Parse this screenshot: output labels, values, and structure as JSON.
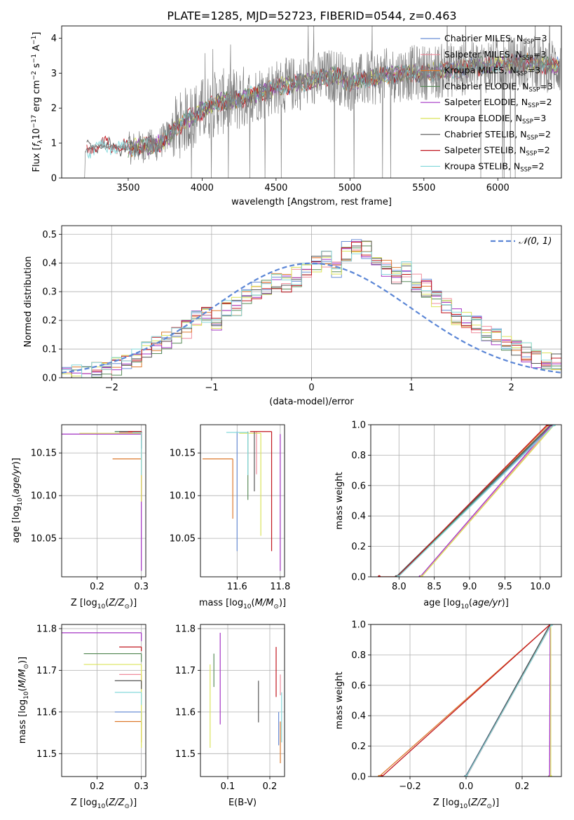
{
  "figure_title": "PLATE=1285, MJD=52723, FIBERID=0544, z=0.463",
  "model_colors": [
    "#6b8fd6",
    "#f08c9c",
    "#dd7a2e",
    "#5a8c5a",
    "#a332c4",
    "#dbe35a",
    "#555555",
    "#c0161f",
    "#86d9dc"
  ],
  "chart_data": [
    {
      "id": "spectrum",
      "type": "line",
      "title": "PLATE=1285, MJD=52723, FIBERID=0544, z=0.463",
      "xlabel": "wavelength [Angstrom, rest frame]",
      "ylabel": "Flux [f_λ 10^-17 erg cm^-2 s^-1 A^-1]",
      "xlim": [
        3050,
        6430
      ],
      "ylim": [
        0,
        4.35
      ],
      "xticks": [
        3500,
        4000,
        4500,
        5000,
        5500,
        6000
      ],
      "yticks": [
        0,
        1,
        2,
        3,
        4
      ],
      "grid": false,
      "legend_position": "top-right",
      "data_color": "#808080",
      "data_trend": {
        "x": [
          3210,
          3260,
          3350,
          3500,
          3700,
          3900,
          4100,
          4300,
          4500,
          4700,
          4800,
          4900,
          5000,
          5200,
          5400,
          5600,
          5800,
          6000,
          6200,
          6400
        ],
        "y": [
          0.75,
          0.9,
          0.92,
          0.85,
          0.95,
          1.7,
          2.15,
          2.3,
          2.6,
          2.75,
          2.85,
          2.95,
          2.7,
          2.9,
          3.0,
          3.05,
          3.15,
          3.25,
          3.3,
          3.2
        ]
      },
      "series": [
        {
          "name": "Chabrier MILES",
          "nssp": "3"
        },
        {
          "name": "Salpeter MILES",
          "nssp": "3"
        },
        {
          "name": "Kroupa MILES",
          "nssp": "3"
        },
        {
          "name": "Chabrier ELODIE",
          "nssp": "3"
        },
        {
          "name": "Salpeter ELODIE",
          "nssp": "2"
        },
        {
          "name": "Kroupa ELODIE",
          "nssp": "3"
        },
        {
          "name": "Chabrier STELIB",
          "nssp": "2"
        },
        {
          "name": "Salpeter STELIB",
          "nssp": "2"
        },
        {
          "name": "Kroupa STELIB",
          "nssp": "2"
        }
      ]
    },
    {
      "id": "residuals",
      "type": "line",
      "xlabel": "(data-model)/error",
      "ylabel": "Normed distribution",
      "xlim": [
        -2.5,
        2.5
      ],
      "ylim": [
        0,
        0.53
      ],
      "xticks": [
        -2,
        -1,
        0,
        1,
        2
      ],
      "yticks": [
        0.0,
        0.1,
        0.2,
        0.3,
        0.4,
        0.5
      ],
      "grid": true,
      "legend_position": "top-right",
      "reference_curve": {
        "name": "N(0,1)",
        "mean": 0,
        "sigma": 1
      },
      "bins": [
        -2.5,
        -2.4,
        -2.3,
        -2.2,
        -2.1,
        -2.0,
        -1.9,
        -1.8,
        -1.7,
        -1.6,
        -1.5,
        -1.4,
        -1.3,
        -1.2,
        -1.1,
        -1.0,
        -0.9,
        -0.8,
        -0.7,
        -0.6,
        -0.5,
        -0.4,
        -0.3,
        -0.2,
        -0.1,
        0.0,
        0.1,
        0.2,
        0.3,
        0.4,
        0.5,
        0.6,
        0.7,
        0.8,
        0.9,
        1.0,
        1.1,
        1.2,
        1.3,
        1.4,
        1.5,
        1.6,
        1.7,
        1.8,
        1.9,
        2.0,
        2.1,
        2.2,
        2.3,
        2.4,
        2.5
      ],
      "histogram_base": [
        0.01,
        0.01,
        0.015,
        0.02,
        0.03,
        0.04,
        0.06,
        0.07,
        0.09,
        0.11,
        0.13,
        0.15,
        0.17,
        0.2,
        0.22,
        0.2,
        0.24,
        0.25,
        0.28,
        0.3,
        0.32,
        0.34,
        0.33,
        0.35,
        0.37,
        0.4,
        0.41,
        0.38,
        0.44,
        0.46,
        0.45,
        0.4,
        0.38,
        0.35,
        0.37,
        0.33,
        0.31,
        0.27,
        0.25,
        0.22,
        0.2,
        0.19,
        0.16,
        0.14,
        0.12,
        0.1,
        0.09,
        0.07,
        0.06,
        0.05
      ]
    },
    {
      "id": "age_vs_Z",
      "type": "scatter",
      "xlabel": "Z [log10(Z/Z⊙)]",
      "ylabel": "age  [log10(age/yr)]",
      "xlim": [
        0.12,
        0.31
      ],
      "ylim": [
        10.005,
        10.183
      ],
      "xticks": [
        0.2,
        0.3
      ],
      "yticks": [
        10.05,
        10.1,
        10.15
      ],
      "grid": true,
      "points": [
        {
          "x": 0.3,
          "y": 10.175,
          "xerr": 0.06,
          "yerr": 0.02
        },
        {
          "x": 0.3,
          "y": 10.174,
          "xerr": 0.05,
          "yerr": 0.03
        },
        {
          "x": 0.3,
          "y": 10.143,
          "xerr": 0.065,
          "yerr": 0.05
        },
        {
          "x": 0.3,
          "y": 10.175,
          "xerr": 0.06,
          "yerr": 0.02
        },
        {
          "x": 0.3,
          "y": 10.172,
          "xerr": 0.18,
          "yerr": 0.16
        },
        {
          "x": 0.3,
          "y": 10.173,
          "xerr": 0.14,
          "yerr": 0.08
        },
        {
          "x": 0.3,
          "y": 10.175,
          "xerr": 0.05,
          "yerr": 0.02
        },
        {
          "x": 0.3,
          "y": 10.175,
          "xerr": 0.03,
          "yerr": 0.01
        },
        {
          "x": 0.3,
          "y": 10.174,
          "xerr": 0.02,
          "yerr": 0.05
        }
      ]
    },
    {
      "id": "age_vs_mass",
      "type": "scatter",
      "xlabel": "mass [log10(M/M⊙)]",
      "ylabel": "",
      "xlim": [
        11.43,
        11.82
      ],
      "ylim": [
        10.005,
        10.183
      ],
      "xticks": [
        11.6,
        11.8
      ],
      "yticks": [
        10.05,
        10.1,
        10.15
      ],
      "grid": true,
      "points": [
        {
          "x": 11.6,
          "y": 10.175,
          "xerr": 0.0,
          "yerr": 0.14
        },
        {
          "x": 11.69,
          "y": 10.175,
          "xerr": 0.0,
          "yerr": 0.05
        },
        {
          "x": 11.58,
          "y": 10.143,
          "xerr": 0.14,
          "yerr": 0.07
        },
        {
          "x": 11.65,
          "y": 10.175,
          "xerr": 0.0,
          "yerr": 0.08
        },
        {
          "x": 11.8,
          "y": 10.172,
          "xerr": 0.0,
          "yerr": 0.16
        },
        {
          "x": 11.71,
          "y": 10.173,
          "xerr": 0.1,
          "yerr": 0.12
        },
        {
          "x": 11.68,
          "y": 10.175,
          "xerr": 0.0,
          "yerr": 0.07
        },
        {
          "x": 11.76,
          "y": 10.175,
          "xerr": 0.1,
          "yerr": 0.14
        },
        {
          "x": 11.65,
          "y": 10.174,
          "xerr": 0.1,
          "yerr": 0.05
        }
      ]
    },
    {
      "id": "massweight_vs_age",
      "type": "line",
      "xlabel": "age  [log10(age/yr)]",
      "ylabel": "mass weight",
      "xlim": [
        7.6,
        10.3
      ],
      "ylim": [
        0,
        1
      ],
      "xticks": [
        8.0,
        8.5,
        9.0,
        9.5,
        10.0
      ],
      "yticks": [
        0.0,
        0.2,
        0.4,
        0.6,
        0.8,
        1.0
      ],
      "grid": true,
      "lines": [
        {
          "x": [
            7.98,
            10.18
          ],
          "y": [
            0,
            1
          ]
        },
        {
          "x": [
            8.32,
            10.18
          ],
          "y": [
            0,
            1
          ]
        },
        {
          "x": [
            7.72,
            7.98,
            10.12
          ],
          "y": [
            0,
            0,
            1
          ]
        },
        {
          "x": [
            7.98,
            10.16
          ],
          "y": [
            0,
            1
          ]
        },
        {
          "x": [
            8.3,
            10.16
          ],
          "y": [
            0,
            1
          ]
        },
        {
          "x": [
            8.32,
            10.2
          ],
          "y": [
            0,
            1
          ]
        },
        {
          "x": [
            7.96,
            10.15
          ],
          "y": [
            0,
            1
          ]
        },
        {
          "x": [
            7.72,
            7.98,
            10.1
          ],
          "y": [
            0,
            0,
            1
          ]
        },
        {
          "x": [
            7.99,
            10.2
          ],
          "y": [
            0,
            1
          ]
        }
      ]
    },
    {
      "id": "mass_vs_Z",
      "type": "scatter",
      "xlabel": "Z [log10(Z/Z⊙)]",
      "ylabel": "mass [log10(M/M⊙)]",
      "xlim": [
        0.12,
        0.31
      ],
      "ylim": [
        11.445,
        11.81
      ],
      "xticks": [
        0.2,
        0.3
      ],
      "yticks": [
        11.5,
        11.6,
        11.7,
        11.8
      ],
      "grid": true,
      "points": [
        {
          "x": 0.3,
          "y": 11.6,
          "xerr": 0.06,
          "yerr": 0.03
        },
        {
          "x": 0.3,
          "y": 11.69,
          "xerr": 0.05,
          "yerr": 0.03
        },
        {
          "x": 0.3,
          "y": 11.577,
          "xerr": 0.06,
          "yerr": 0.05
        },
        {
          "x": 0.3,
          "y": 11.74,
          "xerr": 0.13,
          "yerr": 0.02
        },
        {
          "x": 0.3,
          "y": 11.79,
          "xerr": 0.18,
          "yerr": 0.02
        },
        {
          "x": 0.3,
          "y": 11.714,
          "xerr": 0.13,
          "yerr": 0.2
        },
        {
          "x": 0.3,
          "y": 11.675,
          "xerr": 0.06,
          "yerr": 0.02
        },
        {
          "x": 0.3,
          "y": 11.756,
          "xerr": 0.05,
          "yerr": 0.01
        },
        {
          "x": 0.3,
          "y": 11.647,
          "xerr": 0.06,
          "yerr": 0.03
        }
      ]
    },
    {
      "id": "mass_vs_ebv",
      "type": "scatter",
      "xlabel": "E(B-V)",
      "ylabel": "",
      "xlim": [
        0.035,
        0.235
      ],
      "ylim": [
        11.445,
        11.81
      ],
      "xticks": [
        0.1,
        0.2
      ],
      "yticks": [
        11.5,
        11.6,
        11.7,
        11.8
      ],
      "grid": true,
      "points": [
        {
          "x": 0.221,
          "y": 11.6,
          "xerr": 0.0,
          "yerr": 0.08
        },
        {
          "x": 0.225,
          "y": 11.69,
          "xerr": 0.0,
          "yerr": 0.05
        },
        {
          "x": 0.225,
          "y": 11.577,
          "xerr": 0.0,
          "yerr": 0.1
        },
        {
          "x": 0.067,
          "y": 11.74,
          "xerr": 0.0,
          "yerr": 0.08
        },
        {
          "x": 0.082,
          "y": 11.79,
          "xerr": 0.0,
          "yerr": 0.22
        },
        {
          "x": 0.058,
          "y": 11.714,
          "xerr": 0.0,
          "yerr": 0.2
        },
        {
          "x": 0.173,
          "y": 11.675,
          "xerr": 0.0,
          "yerr": 0.1
        },
        {
          "x": 0.215,
          "y": 11.756,
          "xerr": 0.0,
          "yerr": 0.12
        },
        {
          "x": 0.228,
          "y": 11.647,
          "xerr": 0.0,
          "yerr": 0.12
        }
      ]
    },
    {
      "id": "massweight_vs_Z",
      "type": "line",
      "xlabel": "Z [log10(Z/Z⊙)]",
      "ylabel": "mass weight",
      "xlim": [
        -0.34,
        0.34
      ],
      "ylim": [
        0,
        1
      ],
      "xticks": [
        -0.2,
        0.0,
        0.2
      ],
      "yticks": [
        0.0,
        0.2,
        0.4,
        0.6,
        0.8,
        1.0
      ],
      "grid": true,
      "lines": [
        {
          "x": [
            -0.002,
            0.3
          ],
          "y": [
            0,
            1
          ]
        },
        {
          "x": [
            0.002,
            0.305
          ],
          "y": [
            0,
            1
          ]
        },
        {
          "x": [
            -0.31,
            0.3
          ],
          "y": [
            0,
            1
          ]
        },
        {
          "x": [
            0.0,
            0.3
          ],
          "y": [
            0,
            1
          ]
        },
        {
          "x": [
            0.298,
            0.3
          ],
          "y": [
            0,
            1
          ]
        },
        {
          "x": [
            0.302,
            0.302
          ],
          "y": [
            0,
            1
          ]
        },
        {
          "x": [
            -0.001,
            0.3
          ],
          "y": [
            0,
            1
          ]
        },
        {
          "x": [
            -0.3,
            0.3
          ],
          "y": [
            0,
            1
          ]
        },
        {
          "x": [
            0.001,
            0.305
          ],
          "y": [
            0,
            1
          ]
        }
      ]
    }
  ]
}
